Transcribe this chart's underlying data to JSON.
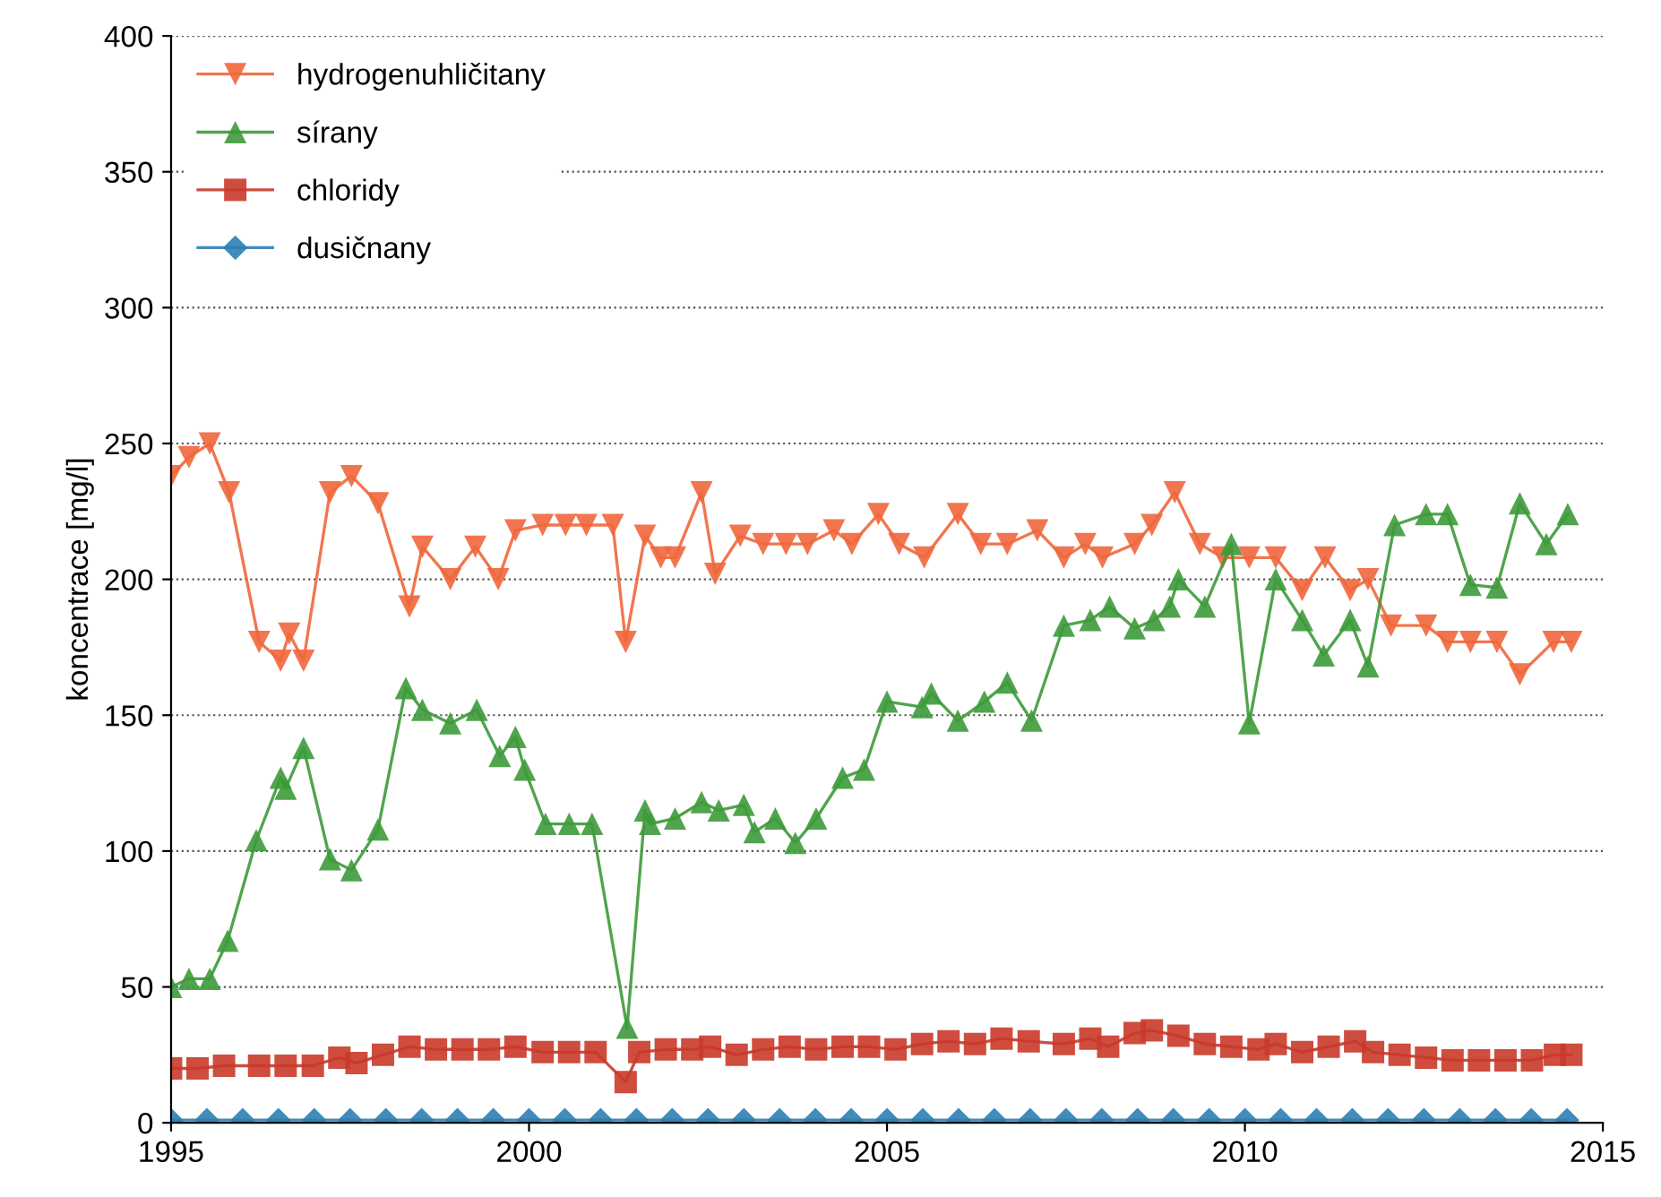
{
  "chart_data": {
    "type": "line",
    "ylabel": "koncentrace [mg/l]",
    "xlim": [
      1995,
      2015
    ],
    "ylim": [
      0,
      400
    ],
    "xticks": [
      1995,
      2000,
      2005,
      2010,
      2015
    ],
    "yticks": [
      0,
      50,
      100,
      150,
      200,
      250,
      300,
      350,
      400
    ],
    "grid": "y",
    "legend": "top left",
    "series": [
      {
        "name": "hydrogenuhličitany",
        "color": "#f0673c",
        "marker": "triangle_down",
        "x": [
          1995,
          1995.25,
          1995.54,
          1995.81,
          1996.23,
          1996.53,
          1996.65,
          1996.85,
          1997.22,
          1997.52,
          1997.89,
          1998.33,
          1998.51,
          1998.9,
          1999.25,
          1999.57,
          1999.81,
          2000.19,
          2000.51,
          2000.8,
          2001.17,
          2001.35,
          2001.62,
          2001.84,
          2002.04,
          2002.41,
          2002.6,
          2002.95,
          2003.27,
          2003.59,
          2003.89,
          2004.26,
          2004.51,
          2004.88,
          2005.17,
          2005.52,
          2005.99,
          2006.31,
          2006.68,
          2007.1,
          2007.47,
          2007.77,
          2008.01,
          2008.46,
          2008.7,
          2009.02,
          2009.37,
          2009.69,
          2010.06,
          2010.43,
          2010.8,
          2011.12,
          2011.47,
          2011.72,
          2012.04,
          2012.53,
          2012.83,
          2013.15,
          2013.52,
          2013.84,
          2014.31,
          2014.56
        ],
        "values": [
          238,
          245,
          250,
          232,
          177,
          170,
          180,
          170,
          232,
          238,
          228,
          190,
          212,
          200,
          212,
          200,
          218,
          220,
          220,
          220,
          220,
          177,
          216,
          208,
          208,
          232,
          202,
          216,
          213,
          213,
          213,
          218,
          213,
          224,
          213,
          208,
          224,
          213,
          213,
          218,
          208,
          213,
          208,
          213,
          220,
          232,
          213,
          208,
          208,
          208,
          196,
          208,
          196,
          200,
          183,
          183,
          177,
          177,
          177,
          165,
          177,
          177
        ]
      },
      {
        "name": "sírany",
        "color": "#3d9a3a",
        "marker": "triangle",
        "x": [
          1995,
          1995.25,
          1995.54,
          1995.79,
          1996.19,
          1996.53,
          1996.6,
          1996.85,
          1997.22,
          1997.52,
          1997.89,
          1998.28,
          1998.51,
          1998.9,
          1999.27,
          1999.59,
          1999.81,
          1999.94,
          2000.23,
          2000.56,
          2000.88,
          2001.37,
          2001.62,
          2001.69,
          2002.04,
          2002.41,
          2002.65,
          2003,
          2003.15,
          2003.44,
          2003.72,
          2004.01,
          2004.38,
          2004.68,
          2005,
          2005.49,
          2005.62,
          2005.99,
          2006.36,
          2006.68,
          2007.02,
          2007.47,
          2007.84,
          2008.11,
          2008.46,
          2008.73,
          2008.95,
          2009.07,
          2009.44,
          2009.81,
          2010.06,
          2010.43,
          2010.8,
          2011.1,
          2011.47,
          2011.72,
          2012.09,
          2012.53,
          2012.83,
          2013.15,
          2013.52,
          2013.84,
          2014.21,
          2014.51
        ],
        "values": [
          50,
          53,
          53,
          67,
          104,
          127,
          123,
          138,
          97,
          93,
          108,
          160,
          152,
          147,
          152,
          135,
          142,
          130,
          110,
          110,
          110,
          35,
          115,
          110,
          112,
          118,
          115,
          117,
          107,
          112,
          103,
          112,
          127,
          130,
          155,
          153,
          158,
          148,
          155,
          162,
          148,
          183,
          185,
          190,
          182,
          185,
          190,
          200,
          190,
          213,
          147,
          200,
          185,
          172,
          185,
          168,
          220,
          224,
          224,
          198,
          197,
          228,
          213,
          224
        ]
      },
      {
        "name": "chloridy",
        "color": "#c93a2a",
        "marker": "square",
        "x": [
          1995,
          1995.37,
          1995.74,
          1996.23,
          1996.6,
          1996.98,
          1997.35,
          1997.59,
          1997.96,
          1998.33,
          1998.7,
          1999.07,
          1999.44,
          1999.81,
          2000.19,
          2000.56,
          2000.93,
          2001.35,
          2001.54,
          2001.91,
          2002.28,
          2002.53,
          2002.9,
          2003.27,
          2003.64,
          2004.01,
          2004.38,
          2004.75,
          2005.12,
          2005.49,
          2005.86,
          2006.23,
          2006.6,
          2006.98,
          2007.47,
          2007.84,
          2008.09,
          2008.46,
          2008.7,
          2009.07,
          2009.44,
          2009.81,
          2010.19,
          2010.43,
          2010.8,
          2011.17,
          2011.54,
          2011.79,
          2012.16,
          2012.53,
          2012.9,
          2013.27,
          2013.64,
          2014.01,
          2014.33,
          2014.56
        ],
        "values": [
          20,
          20,
          21,
          21,
          21,
          21,
          24,
          22,
          25,
          28,
          27,
          27,
          27,
          28,
          26,
          26,
          26,
          15,
          26,
          27,
          27,
          28,
          25,
          27,
          28,
          27,
          28,
          28,
          27,
          29,
          30,
          29,
          31,
          30,
          29,
          31,
          28,
          33,
          34,
          32,
          29,
          28,
          27,
          29,
          26,
          28,
          30,
          26,
          25,
          24,
          23,
          23,
          23,
          23,
          25,
          25
        ]
      },
      {
        "name": "dusičnany",
        "color": "#2c80b4",
        "marker": "diamond",
        "x": [
          1995,
          1995.5,
          1996,
          1996.5,
          1997,
          1997.5,
          1998,
          1998.5,
          1999,
          1999.5,
          2000,
          2000.5,
          2001,
          2001.5,
          2002,
          2002.5,
          2003,
          2003.5,
          2004,
          2004.5,
          2005,
          2005.5,
          2006,
          2006.5,
          2007,
          2007.5,
          2008,
          2008.5,
          2009,
          2009.5,
          2010,
          2010.5,
          2011,
          2011.5,
          2012,
          2012.5,
          2013,
          2013.5,
          2014,
          2014.5
        ],
        "values": [
          1,
          1,
          1,
          1,
          1,
          1,
          1,
          1,
          1,
          1,
          1,
          1,
          1,
          1,
          1,
          1,
          1,
          1,
          1,
          1,
          1,
          1,
          1,
          1,
          1,
          1,
          1,
          1,
          1,
          1,
          1,
          1,
          1,
          1,
          1,
          1,
          1,
          1,
          1,
          1
        ]
      }
    ]
  }
}
